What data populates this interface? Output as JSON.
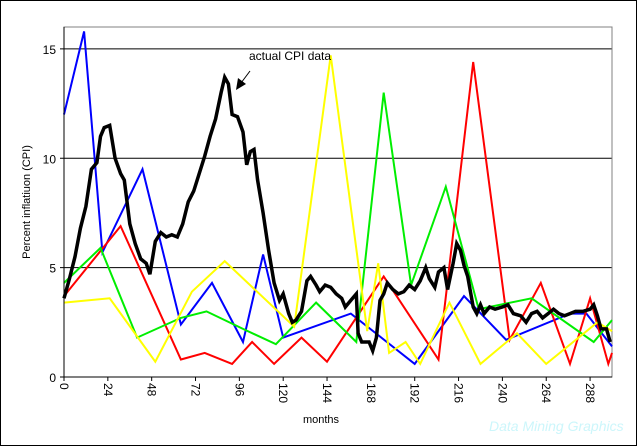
{
  "chart_data": {
    "type": "line",
    "title": "",
    "xlabel": "months",
    "ylabel": "Percent inflatiuon (CPI)",
    "xlim": [
      0,
      300
    ],
    "ylim": [
      0,
      16
    ],
    "xticks": [
      0,
      24,
      48,
      72,
      96,
      120,
      144,
      168,
      192,
      216,
      240,
      264,
      288
    ],
    "yticks": [
      0,
      5,
      10,
      15
    ],
    "grid": "horizontal at 5, 10, 15",
    "legend": "none",
    "annotation": "actual CPI data",
    "watermark": "Data Mining Graphics",
    "series": [
      {
        "color": "#0000ff",
        "x": [
          0,
          11,
          21,
          43,
          64,
          81,
          98,
          109,
          120,
          157,
          192,
          219,
          242,
          277,
          286,
          300
        ],
        "y": [
          12.0,
          15.8,
          5.7,
          9.5,
          2.4,
          4.3,
          1.6,
          5.6,
          1.8,
          2.9,
          0.6,
          3.7,
          1.7,
          2.9,
          2.9,
          1.4
        ]
      },
      {
        "color": "#ff0000",
        "x": [
          0,
          31,
          64,
          77,
          92,
          103,
          115,
          130,
          144,
          175,
          205,
          224,
          244,
          261,
          277,
          288,
          298,
          300
        ],
        "y": [
          3.7,
          6.9,
          0.8,
          1.1,
          0.6,
          1.6,
          0.6,
          1.8,
          0.7,
          4.6,
          0.8,
          14.4,
          1.7,
          4.3,
          0.6,
          3.6,
          0.6,
          1.1
        ]
      },
      {
        "color": "#00ee00",
        "x": [
          0,
          20,
          40,
          64,
          78,
          98,
          116,
          138,
          160,
          175,
          190,
          209,
          227,
          256,
          290,
          300
        ],
        "y": [
          4.3,
          5.9,
          1.8,
          2.7,
          3.0,
          2.2,
          1.5,
          3.4,
          1.6,
          13.0,
          4.2,
          8.7,
          3.1,
          3.6,
          1.6,
          2.6
        ]
      },
      {
        "color": "#ffff00",
        "x": [
          0,
          25,
          50,
          70,
          88,
          126,
          146,
          166,
          172,
          178,
          187,
          195,
          211,
          228,
          248,
          264,
          292,
          300
        ],
        "y": [
          3.4,
          3.6,
          0.7,
          3.9,
          5.3,
          2.3,
          14.7,
          2.1,
          5.2,
          1.1,
          1.6,
          0.6,
          3.4,
          0.6,
          2.0,
          0.6,
          2.5,
          2.1
        ]
      },
      {
        "name": "actual CPI data",
        "color": "#000000",
        "x": [
          0,
          3,
          6,
          9,
          12,
          15,
          18,
          20,
          22,
          25,
          28,
          31,
          33,
          36,
          39,
          42,
          45,
          47,
          50,
          53,
          56,
          59,
          62,
          65,
          68,
          71,
          74,
          77,
          80,
          83,
          86,
          88,
          90,
          92,
          95,
          98,
          100,
          102,
          104,
          106,
          109,
          112,
          115,
          118,
          120,
          123,
          125,
          127,
          130,
          133,
          135,
          138,
          140,
          143,
          146,
          149,
          152,
          154,
          157,
          160,
          161,
          163,
          167,
          169,
          171,
          173,
          175,
          177,
          180,
          183,
          186,
          189,
          192,
          195,
          198,
          200,
          203,
          205,
          208,
          210,
          213,
          215,
          217,
          219,
          221,
          224,
          226,
          228,
          230,
          233,
          236,
          240,
          243,
          246,
          250,
          253,
          256,
          259,
          262,
          265,
          268,
          271,
          274,
          277,
          280,
          284,
          288,
          290,
          292,
          294,
          297,
          299
        ],
        "y": [
          3.6,
          4.5,
          5.5,
          6.8,
          7.8,
          9.5,
          9.8,
          11.0,
          11.4,
          11.5,
          10.0,
          9.3,
          9.0,
          7.0,
          6.1,
          5.4,
          5.2,
          4.7,
          6.2,
          6.6,
          6.4,
          6.5,
          6.4,
          7.0,
          8.0,
          8.5,
          9.3,
          10.1,
          11.0,
          11.8,
          13.0,
          13.7,
          13.4,
          12.0,
          11.9,
          11.2,
          9.7,
          10.3,
          10.4,
          9.0,
          7.5,
          5.8,
          4.3,
          3.5,
          3.8,
          2.9,
          2.5,
          2.6,
          3.0,
          4.4,
          4.6,
          4.2,
          3.9,
          4.2,
          4.1,
          3.8,
          3.6,
          3.2,
          3.5,
          3.8,
          2.0,
          1.6,
          1.6,
          1.2,
          1.8,
          3.5,
          3.8,
          4.3,
          4.0,
          3.8,
          3.9,
          4.2,
          4.0,
          4.4,
          5.0,
          4.5,
          4.1,
          4.8,
          5.0,
          4.0,
          5.2,
          6.1,
          5.8,
          5.1,
          4.6,
          3.2,
          2.9,
          3.3,
          2.9,
          3.2,
          3.1,
          3.2,
          3.3,
          2.9,
          2.8,
          2.5,
          2.9,
          3.0,
          2.7,
          2.9,
          3.1,
          2.9,
          2.8,
          2.9,
          3.0,
          3.0,
          3.1,
          3.3,
          2.8,
          2.2,
          2.2,
          1.6
        ]
      }
    ]
  }
}
